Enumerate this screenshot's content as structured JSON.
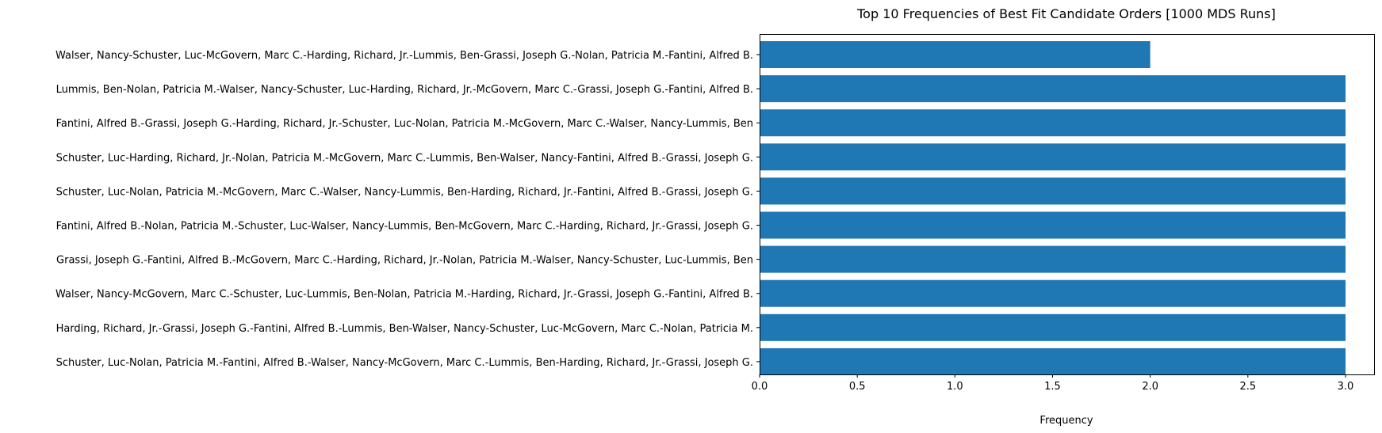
{
  "chart_data": {
    "type": "bar",
    "orientation": "horizontal",
    "title": "Top 10 Frequencies of Best Fit Candidate Orders [1000 MDS Runs]",
    "xlabel": "Frequency",
    "ylabel": "",
    "xlim": [
      0,
      3.15
    ],
    "xticks": [
      "0.0",
      "0.5",
      "1.0",
      "1.5",
      "2.0",
      "2.5",
      "3.0"
    ],
    "xtick_values": [
      0,
      0.5,
      1.0,
      1.5,
      2.0,
      2.5,
      3.0
    ],
    "grid": false,
    "bar_color": "#1f77b4",
    "categories": [
      "Walser, Nancy-Schuster, Luc-McGovern, Marc C.-Harding, Richard, Jr.-Lummis, Ben-Grassi, Joseph G.-Nolan, Patricia M.-Fantini, Alfred B.",
      "Lummis, Ben-Nolan, Patricia M.-Walser, Nancy-Schuster, Luc-Harding, Richard, Jr.-McGovern, Marc C.-Grassi, Joseph G.-Fantini, Alfred B.",
      "Fantini, Alfred B.-Grassi, Joseph G.-Harding, Richard, Jr.-Schuster, Luc-Nolan, Patricia M.-McGovern, Marc C.-Walser, Nancy-Lummis, Ben",
      "Schuster, Luc-Harding, Richard, Jr.-Nolan, Patricia M.-McGovern, Marc C.-Lummis, Ben-Walser, Nancy-Fantini, Alfred B.-Grassi, Joseph G.",
      "Schuster, Luc-Nolan, Patricia M.-McGovern, Marc C.-Walser, Nancy-Lummis, Ben-Harding, Richard, Jr.-Fantini, Alfred B.-Grassi, Joseph G.",
      "Fantini, Alfred B.-Nolan, Patricia M.-Schuster, Luc-Walser, Nancy-Lummis, Ben-McGovern, Marc C.-Harding, Richard, Jr.-Grassi, Joseph G.",
      "Grassi, Joseph G.-Fantini, Alfred B.-McGovern, Marc C.-Harding, Richard, Jr.-Nolan, Patricia M.-Walser, Nancy-Schuster, Luc-Lummis, Ben",
      "Walser, Nancy-McGovern, Marc C.-Schuster, Luc-Lummis, Ben-Nolan, Patricia M.-Harding, Richard, Jr.-Grassi, Joseph G.-Fantini, Alfred B.",
      "Harding, Richard, Jr.-Grassi, Joseph G.-Fantini, Alfred B.-Lummis, Ben-Walser, Nancy-Schuster, Luc-McGovern, Marc C.-Nolan, Patricia M.",
      "Schuster, Luc-Nolan, Patricia M.-Fantini, Alfred B.-Walser, Nancy-McGovern, Marc C.-Lummis, Ben-Harding, Richard, Jr.-Grassi, Joseph G."
    ],
    "values": [
      2,
      3,
      3,
      3,
      3,
      3,
      3,
      3,
      3,
      3
    ]
  }
}
